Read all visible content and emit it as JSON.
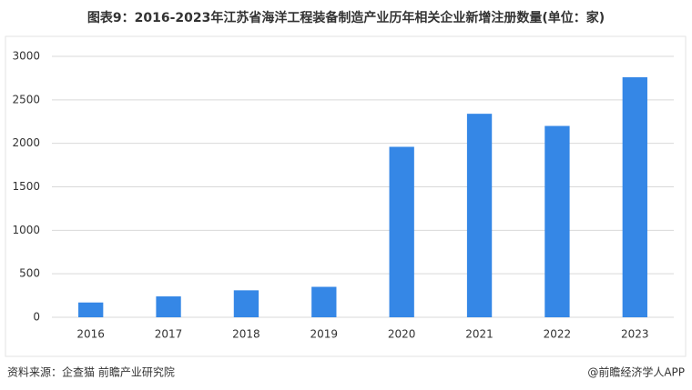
{
  "chart_data": {
    "type": "bar",
    "title": "图表9：2016-2023年江苏省海洋工程装备制造产业历年相关企业新增注册数量(单位：家)",
    "categories": [
      "2016",
      "2017",
      "2018",
      "2019",
      "2020",
      "2021",
      "2022",
      "2023"
    ],
    "values": [
      170,
      240,
      310,
      350,
      1960,
      2340,
      2200,
      2760
    ],
    "color": "#3587e6",
    "ylim": [
      0,
      3000
    ],
    "yticks": [
      0,
      500,
      1000,
      1500,
      2000,
      2500,
      3000
    ],
    "grid": true,
    "source": "资料来源：企查猫 前瞻产业研究院",
    "credit": "@前瞻经济学人APP"
  }
}
